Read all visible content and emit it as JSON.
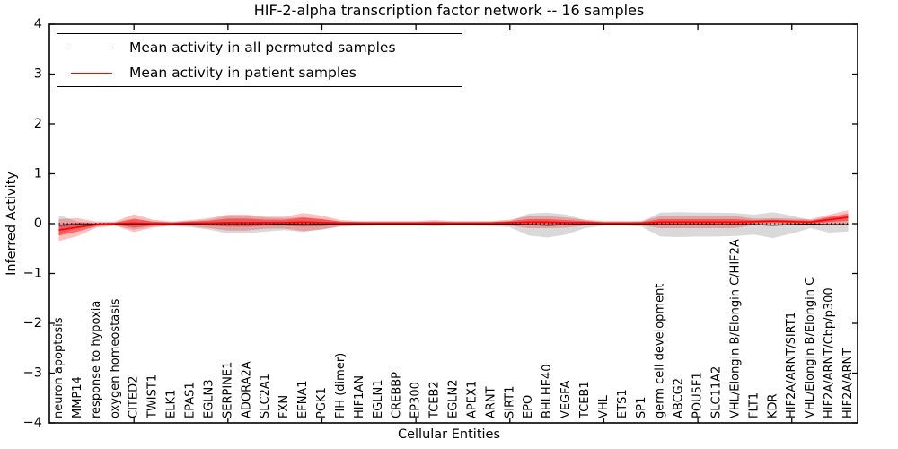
{
  "figure": {
    "title": "HIF-2-alpha transcription factor network -- 16 samples",
    "xlabel": "Cellular Entities",
    "ylabel": "Inferred Activity"
  },
  "legend": {
    "entries": [
      {
        "label": "Mean activity in all permuted samples",
        "color": "#000000"
      },
      {
        "label": "Mean activity in patient samples",
        "color": "#ff0000"
      }
    ]
  },
  "chart_data": {
    "type": "line",
    "title": "HIF-2-alpha transcription factor network -- 16 samples",
    "xlabel": "Cellular Entities",
    "ylabel": "Inferred Activity",
    "ylim": [
      -4,
      4
    ],
    "yticks": [
      -4,
      -3,
      -2,
      -1,
      0,
      1,
      2,
      3,
      4
    ],
    "xtick_mark_indices": [
      4,
      9,
      14,
      19,
      24,
      29,
      34,
      39
    ],
    "grid": false,
    "legend_position": "upper left",
    "zero_reference_line": 0,
    "band_colors": {
      "permuted": "#aaaaaa",
      "patient": "#ff0000"
    },
    "categories": [
      "neuron apoptosis",
      "MMP14",
      "response to hypoxia",
      "oxygen homeostasis",
      "CITED2",
      "TWIST1",
      "ELK1",
      "EPAS1",
      "EGLN3",
      "SERPINE1",
      "ADORA2A",
      "SLC2A1",
      "FXN",
      "EFNA1",
      "PGK1",
      "FIH (dimer)",
      "HIF1AN",
      "EGLN1",
      "CREBBP",
      "EP300",
      "TCEB2",
      "EGLN2",
      "APEX1",
      "ARNT",
      "SIRT1",
      "EPO",
      "BHLHE40",
      "VEGFA",
      "TCEB1",
      "VHL",
      "ETS1",
      "SP1",
      "germ cell development",
      "ABCG2",
      "POU5F1",
      "SLC11A2",
      "VHL/Elongin B/Elongin C/HIF2A",
      "FLT1",
      "KDR",
      "HIF2A/ARNT/SIRT1",
      "VHL/Elongin B/Elongin C",
      "HIF2A/ARNT/Cbp/p300",
      "HIF2A/ARNT"
    ],
    "series": [
      {
        "name": "Mean activity in all permuted samples",
        "color": "#000000",
        "values": [
          -0.03,
          -0.02,
          -0.01,
          -0.01,
          -0.02,
          -0.01,
          -0.01,
          -0.01,
          -0.02,
          -0.02,
          -0.02,
          -0.02,
          -0.01,
          -0.02,
          -0.01,
          -0.01,
          -0.01,
          -0.01,
          -0.01,
          -0.01,
          -0.01,
          -0.01,
          -0.01,
          -0.01,
          -0.01,
          -0.02,
          -0.03,
          -0.02,
          -0.01,
          -0.01,
          -0.01,
          -0.01,
          -0.02,
          -0.02,
          -0.02,
          -0.02,
          -0.02,
          -0.02,
          -0.03,
          -0.02,
          -0.01,
          -0.02,
          -0.02
        ],
        "std": [
          0.2,
          0.06,
          0.03,
          0.03,
          0.1,
          0.05,
          0.04,
          0.06,
          0.1,
          0.18,
          0.17,
          0.14,
          0.12,
          0.15,
          0.1,
          0.05,
          0.04,
          0.03,
          0.03,
          0.03,
          0.03,
          0.03,
          0.03,
          0.04,
          0.06,
          0.22,
          0.25,
          0.2,
          0.08,
          0.03,
          0.03,
          0.05,
          0.24,
          0.25,
          0.24,
          0.24,
          0.23,
          0.2,
          0.26,
          0.18,
          0.08,
          0.16,
          0.14
        ]
      },
      {
        "name": "Mean activity in patient samples",
        "color": "#ff0000",
        "values": [
          -0.13,
          -0.07,
          -0.02,
          0.0,
          0.01,
          0.0,
          0.0,
          0.01,
          0.01,
          0.02,
          0.02,
          0.02,
          0.02,
          0.03,
          0.02,
          0.01,
          0.01,
          0.01,
          0.01,
          0.01,
          0.01,
          0.01,
          0.01,
          0.01,
          0.02,
          0.03,
          0.03,
          0.02,
          0.02,
          0.01,
          0.01,
          0.01,
          0.03,
          0.03,
          0.03,
          0.03,
          0.03,
          0.04,
          0.05,
          0.04,
          0.03,
          0.08,
          0.13
        ],
        "std": [
          0.11,
          0.09,
          0.03,
          0.02,
          0.09,
          0.04,
          0.02,
          0.03,
          0.05,
          0.08,
          0.08,
          0.06,
          0.06,
          0.09,
          0.07,
          0.03,
          0.02,
          0.02,
          0.02,
          0.02,
          0.03,
          0.02,
          0.02,
          0.02,
          0.03,
          0.06,
          0.06,
          0.05,
          0.03,
          0.02,
          0.02,
          0.02,
          0.06,
          0.06,
          0.06,
          0.06,
          0.06,
          0.03,
          0.03,
          0.03,
          0.03,
          0.05,
          0.07
        ]
      }
    ]
  }
}
